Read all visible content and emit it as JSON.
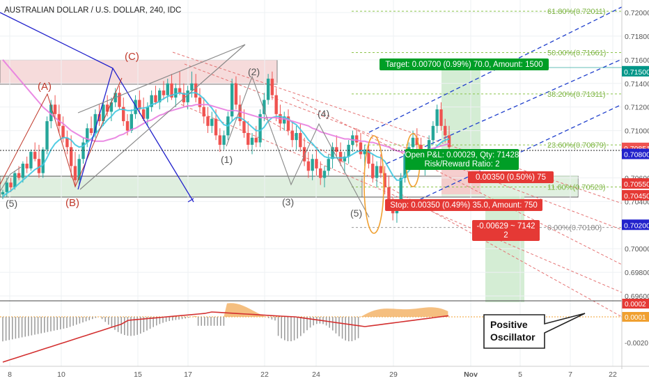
{
  "title": "AUSTRALIAN DOLLAR / U.S. DOLLAR, 240, IDC",
  "colors": {
    "up": "#26a69a",
    "down": "#ef5350",
    "sma_fast": "#40c8e0",
    "sma_slow": "#e87de0",
    "pattern": "#2222cc",
    "fib": "#8bc34a",
    "channel_blue": "#1f3fcc",
    "channel_red": "#e57373",
    "zone": "#f0c8c8",
    "zone_green": "#cfe8cf",
    "target": "#009688",
    "stop": "#e53935",
    "macd": "#d32f2f"
  },
  "chart_data": {
    "type": "candlestick",
    "title": "AUSTRALIAN DOLLAR / U.S. DOLLAR, 240, IDC",
    "x_ticks": [
      "8",
      "10",
      "15",
      "17",
      "22",
      "24",
      "29",
      "Nov",
      "5",
      "7",
      "22"
    ],
    "y_ticks": [
      "0.72000",
      "0.71800",
      "0.71600",
      "0.71400",
      "0.71200",
      "0.71000",
      "0.70600",
      "0.70400",
      "0.70000",
      "0.69800",
      "0.69600"
    ],
    "price_labels": [
      {
        "text": "0.71500",
        "color": "#009688"
      },
      {
        "text": "0.70851",
        "color": "#ef5350"
      },
      {
        "text": "0.70800",
        "color": "#2222cc"
      },
      {
        "text": "0.70550",
        "color": "#e53935"
      },
      {
        "text": "0.70450",
        "color": "#e53935"
      },
      {
        "text": "0.70200",
        "color": "#2222cc"
      }
    ],
    "fib_levels": [
      {
        "text": "61.80%(0.72011)",
        "value": 0.72011
      },
      {
        "text": "50.00%(0.71661)",
        "value": 0.71661
      },
      {
        "text": "38.20%(0.71311)",
        "value": 0.71311
      },
      {
        "text": "23.60%(0.70879)",
        "value": 0.70879
      },
      {
        "text": "11.60%(0.70523)",
        "value": 0.70523
      },
      {
        "text": "0.00%(0.70180)",
        "value": 0.7018
      }
    ],
    "wave_labels": {
      "A": "(A)",
      "B": "(B)",
      "C": "(C)",
      "w1": "(1)",
      "w2": "(2)",
      "w3": "(3)",
      "w4": "(4)",
      "w5": "(5)",
      "w5_left": "(5)"
    },
    "position": {
      "target": "Target: 0.00700 (0.99%) 70.0, Amount: 1500",
      "pnl_line1": "Open P&L: 0.00029, Qty: 71428",
      "pnl_line2": "Risk/Reward Ratio: 2",
      "stop_small": "0.00350 (0.50%) 75",
      "stop": "Stop: 0.00350 (0.49%) 35.0, Amount: 750",
      "loss_line1": "-0.00629 ~ 7142",
      "loss_line2": "2"
    },
    "oscillator": {
      "y_ticks": [
        "0.0002",
        "0.0001",
        "-0.0020"
      ],
      "callout": [
        "Positive",
        "Oscillator"
      ]
    },
    "series": [
      {
        "kind": "ohlc",
        "values": [
          [
            0.7046,
            0.705,
            0.7042,
            0.7048
          ],
          [
            0.7048,
            0.706,
            0.7044,
            0.7056
          ],
          [
            0.7056,
            0.706,
            0.7048,
            0.7052
          ],
          [
            0.7052,
            0.7066,
            0.705,
            0.7064
          ],
          [
            0.7064,
            0.707,
            0.7058,
            0.706
          ],
          [
            0.706,
            0.7074,
            0.7056,
            0.7072
          ],
          [
            0.7072,
            0.7078,
            0.7064,
            0.7068
          ],
          [
            0.7068,
            0.7084,
            0.7066,
            0.7082
          ],
          [
            0.7082,
            0.709,
            0.7074,
            0.7076
          ],
          [
            0.7076,
            0.7088,
            0.706,
            0.7064
          ],
          [
            0.7064,
            0.7086,
            0.706,
            0.7084
          ],
          [
            0.7084,
            0.7112,
            0.708,
            0.7108
          ],
          [
            0.7108,
            0.7126,
            0.7102,
            0.7122
          ],
          [
            0.7122,
            0.713,
            0.711,
            0.7114
          ],
          [
            0.7114,
            0.7122,
            0.7098,
            0.7104
          ],
          [
            0.7104,
            0.7112,
            0.709,
            0.7094
          ],
          [
            0.7094,
            0.71,
            0.708,
            0.7086
          ],
          [
            0.7086,
            0.7096,
            0.706,
            0.707
          ],
          [
            0.707,
            0.7082,
            0.7052,
            0.7058
          ],
          [
            0.7058,
            0.708,
            0.7054,
            0.7076
          ],
          [
            0.7076,
            0.7094,
            0.7072,
            0.709
          ],
          [
            0.709,
            0.7106,
            0.7086,
            0.7102
          ],
          [
            0.7102,
            0.7112,
            0.7096,
            0.7098
          ],
          [
            0.7098,
            0.7118,
            0.7094,
            0.7114
          ],
          [
            0.7114,
            0.7122,
            0.7104,
            0.7108
          ],
          [
            0.7108,
            0.7126,
            0.7104,
            0.7122
          ],
          [
            0.7122,
            0.713,
            0.7112,
            0.7116
          ],
          [
            0.7116,
            0.7128,
            0.7108,
            0.7124
          ],
          [
            0.7124,
            0.7136,
            0.712,
            0.7132
          ],
          [
            0.7132,
            0.7138,
            0.7118,
            0.712
          ],
          [
            0.712,
            0.7128,
            0.7104,
            0.7108
          ],
          [
            0.7108,
            0.7114,
            0.7096,
            0.71
          ],
          [
            0.71,
            0.7118,
            0.7098,
            0.7114
          ],
          [
            0.7114,
            0.713,
            0.711,
            0.7126
          ],
          [
            0.7126,
            0.7134,
            0.7114,
            0.7118
          ],
          [
            0.7118,
            0.7128,
            0.7108,
            0.711
          ],
          [
            0.711,
            0.7124,
            0.7104,
            0.712
          ],
          [
            0.712,
            0.7134,
            0.7116,
            0.713
          ],
          [
            0.713,
            0.7138,
            0.7122,
            0.7124
          ],
          [
            0.7124,
            0.7136,
            0.7118,
            0.7134
          ],
          [
            0.7134,
            0.7142,
            0.7126,
            0.713
          ],
          [
            0.713,
            0.7144,
            0.7124,
            0.714
          ],
          [
            0.714,
            0.7148,
            0.7126,
            0.7128
          ],
          [
            0.7128,
            0.714,
            0.712,
            0.7136
          ],
          [
            0.7136,
            0.715,
            0.713,
            0.7132
          ],
          [
            0.7132,
            0.714,
            0.712,
            0.7124
          ],
          [
            0.7124,
            0.7138,
            0.7118,
            0.7134
          ],
          [
            0.7134,
            0.715,
            0.7128,
            0.714
          ],
          [
            0.714,
            0.7148,
            0.7124,
            0.7128
          ],
          [
            0.7128,
            0.7136,
            0.7116,
            0.712
          ],
          [
            0.712,
            0.7128,
            0.7106,
            0.7112
          ],
          [
            0.7112,
            0.712,
            0.7098,
            0.7104
          ],
          [
            0.7104,
            0.7116,
            0.7098,
            0.711
          ],
          [
            0.711,
            0.7118,
            0.7092,
            0.7096
          ],
          [
            0.7096,
            0.7102,
            0.7082,
            0.7088
          ],
          [
            0.7088,
            0.71,
            0.7084,
            0.7096
          ],
          [
            0.7096,
            0.7116,
            0.7092,
            0.7112
          ],
          [
            0.7112,
            0.7144,
            0.7108,
            0.714
          ],
          [
            0.714,
            0.7146,
            0.7118,
            0.7122
          ],
          [
            0.7122,
            0.713,
            0.7104,
            0.7108
          ],
          [
            0.7108,
            0.7118,
            0.7094,
            0.7098
          ],
          [
            0.7098,
            0.7108,
            0.7084,
            0.7088
          ],
          [
            0.7088,
            0.7098,
            0.708,
            0.7094
          ],
          [
            0.7094,
            0.7104,
            0.7086,
            0.709
          ],
          [
            0.709,
            0.7118,
            0.7086,
            0.7114
          ],
          [
            0.7114,
            0.7132,
            0.7108,
            0.7126
          ],
          [
            0.7126,
            0.7148,
            0.7122,
            0.7144
          ],
          [
            0.7144,
            0.715,
            0.7126,
            0.713
          ],
          [
            0.713,
            0.7136,
            0.7108,
            0.7114
          ],
          [
            0.7114,
            0.7122,
            0.71,
            0.7106
          ],
          [
            0.7106,
            0.7116,
            0.71,
            0.7112
          ],
          [
            0.7112,
            0.7118,
            0.7096,
            0.71
          ],
          [
            0.71,
            0.7108,
            0.7086,
            0.7092
          ],
          [
            0.7092,
            0.7104,
            0.7084,
            0.7098
          ],
          [
            0.7098,
            0.7106,
            0.7082,
            0.7086
          ],
          [
            0.7086,
            0.7094,
            0.707,
            0.7074
          ],
          [
            0.7074,
            0.7082,
            0.706,
            0.7066
          ],
          [
            0.7066,
            0.708,
            0.7058,
            0.7076
          ],
          [
            0.7076,
            0.7084,
            0.7062,
            0.7068
          ],
          [
            0.7068,
            0.7074,
            0.7054,
            0.706
          ],
          [
            0.706,
            0.707,
            0.7052,
            0.7066
          ],
          [
            0.7066,
            0.708,
            0.7062,
            0.7076
          ],
          [
            0.7076,
            0.709,
            0.7068,
            0.7086
          ],
          [
            0.7086,
            0.7096,
            0.7078,
            0.7082
          ],
          [
            0.7082,
            0.709,
            0.707,
            0.7074
          ],
          [
            0.7074,
            0.7082,
            0.7064,
            0.7078
          ],
          [
            0.7078,
            0.7092,
            0.7072,
            0.7088
          ],
          [
            0.7088,
            0.71,
            0.7082,
            0.7096
          ],
          [
            0.7096,
            0.7102,
            0.7086,
            0.709
          ],
          [
            0.709,
            0.7098,
            0.7076,
            0.708
          ],
          [
            0.708,
            0.7088,
            0.707,
            0.7084
          ],
          [
            0.7084,
            0.709,
            0.7068,
            0.7072
          ],
          [
            0.7072,
            0.708,
            0.7056,
            0.706
          ],
          [
            0.706,
            0.7074,
            0.7052,
            0.707
          ],
          [
            0.707,
            0.708,
            0.706,
            0.7064
          ],
          [
            0.7064,
            0.707,
            0.7046,
            0.7052
          ],
          [
            0.7052,
            0.7062,
            0.7032,
            0.7036
          ],
          [
            0.7036,
            0.7044,
            0.7024,
            0.703
          ],
          [
            0.703,
            0.7042,
            0.7022,
            0.704
          ],
          [
            0.704,
            0.7064,
            0.7036,
            0.706
          ],
          [
            0.706,
            0.7084,
            0.7056,
            0.708
          ],
          [
            0.708,
            0.709,
            0.707,
            0.7086
          ],
          [
            0.7086,
            0.71,
            0.708,
            0.7094
          ],
          [
            0.7094,
            0.7102,
            0.7084,
            0.7088
          ],
          [
            0.7088,
            0.7094,
            0.7068,
            0.7072
          ],
          [
            0.7072,
            0.7082,
            0.7062,
            0.7078
          ],
          [
            0.7078,
            0.7096,
            0.7074,
            0.7092
          ],
          [
            0.7092,
            0.7108,
            0.7088,
            0.7104
          ],
          [
            0.7104,
            0.7122,
            0.7098,
            0.7118
          ],
          [
            0.7118,
            0.7124,
            0.71,
            0.7104
          ],
          [
            0.7104,
            0.711,
            0.709,
            0.7096
          ],
          [
            0.7096,
            0.7104,
            0.7082,
            0.7086
          ]
        ]
      },
      {
        "kind": "sma_fast",
        "values": [
          0.7044,
          0.7047,
          0.7049,
          0.7052,
          0.7055,
          0.7058,
          0.7061,
          0.7064,
          0.7067,
          0.7069,
          0.7071,
          0.7077,
          0.7084,
          0.7089,
          0.7092,
          0.7094,
          0.7094,
          0.7092,
          0.7088,
          0.7086,
          0.7087,
          0.709,
          0.7093,
          0.7097,
          0.7101,
          0.7105,
          0.7109,
          0.7112,
          0.7116,
          0.7118,
          0.7118,
          0.7117,
          0.7117,
          0.7118,
          0.7119,
          0.7119,
          0.712,
          0.7122,
          0.7123,
          0.7125,
          0.7127,
          0.7129,
          0.713,
          0.7131,
          0.7132,
          0.7131,
          0.7131,
          0.7132,
          0.7132,
          0.713,
          0.7127,
          0.7123,
          0.7119,
          0.7114,
          0.7109,
          0.7105,
          0.7104,
          0.7108,
          0.7111,
          0.7111,
          0.7109,
          0.7106,
          0.7103,
          0.71,
          0.71,
          0.7103,
          0.7108,
          0.7111,
          0.7112,
          0.7112,
          0.7111,
          0.711,
          0.7107,
          0.7105,
          0.7101,
          0.7097,
          0.7092,
          0.7089,
          0.7085,
          0.7081,
          0.7078,
          0.7077,
          0.7077,
          0.7077,
          0.7077,
          0.7077,
          0.7078,
          0.708,
          0.7082,
          0.7083,
          0.7083,
          0.7082,
          0.708,
          0.7078,
          0.7077,
          0.7074,
          0.7068,
          0.7062,
          0.7058,
          0.7058,
          0.7062,
          0.7066,
          0.707,
          0.7074,
          0.7077,
          0.7078,
          0.708,
          0.7083,
          0.7087,
          0.709,
          0.7092,
          0.7093
        ]
      },
      {
        "kind": "sma_slow",
        "values": [
          0.716,
          0.7156,
          0.7152,
          0.7148,
          0.7144,
          0.714,
          0.7136,
          0.7132,
          0.7128,
          0.7124,
          0.712,
          0.7117,
          0.7114,
          0.7111,
          0.7108,
          0.7106,
          0.7103,
          0.71,
          0.7098,
          0.7096,
          0.7094,
          0.7093,
          0.7092,
          0.7091,
          0.7091,
          0.7091,
          0.7092,
          0.7093,
          0.7094,
          0.7096,
          0.7097,
          0.7099,
          0.7101,
          0.7102,
          0.7104,
          0.7106,
          0.7108,
          0.7109,
          0.7111,
          0.7113,
          0.7114,
          0.7116,
          0.7117,
          0.7118,
          0.7119,
          0.712,
          0.7121,
          0.7121,
          0.7122,
          0.7122,
          0.7122,
          0.7122,
          0.7121,
          0.712,
          0.7119,
          0.7118,
          0.7117,
          0.7117,
          0.7117,
          0.7116,
          0.7115,
          0.7114,
          0.7113,
          0.7112,
          0.7111,
          0.7111,
          0.7111,
          0.7111,
          0.7111,
          0.711,
          0.711,
          0.7109,
          0.7108,
          0.7107,
          0.7106,
          0.7105,
          0.7104,
          0.7102,
          0.7101,
          0.7099,
          0.7098,
          0.7097,
          0.7096,
          0.7095,
          0.7094,
          0.7093,
          0.7093,
          0.7092,
          0.7092,
          0.7091,
          0.7091,
          0.709,
          0.709,
          0.7089,
          0.7088,
          0.7087,
          0.7086,
          0.7084,
          0.7083,
          0.7082,
          0.7082,
          0.7082,
          0.7083,
          0.7083,
          0.7083,
          0.7083,
          0.7084,
          0.7085,
          0.7086,
          0.7087,
          0.7088,
          0.7089
        ]
      }
    ]
  }
}
